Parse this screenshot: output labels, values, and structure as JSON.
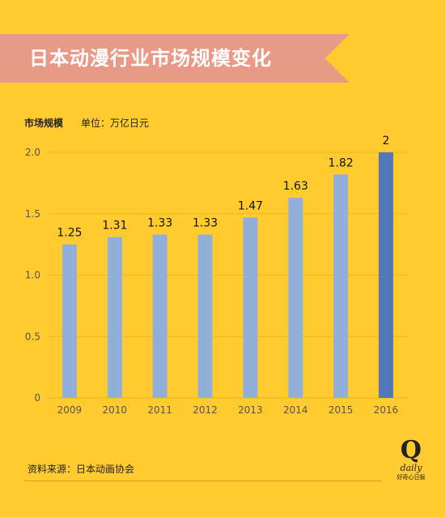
{
  "header": {
    "title": "日本动漫行业市场规模变化"
  },
  "chart_data": {
    "type": "bar",
    "title": "日本动漫行业市场规模变化",
    "ylabel": "市场规模",
    "unit": "单位：万亿日元",
    "categories": [
      "2009",
      "2010",
      "2011",
      "2012",
      "2013",
      "2014",
      "2015",
      "2016"
    ],
    "values": [
      1.25,
      1.31,
      1.33,
      1.33,
      1.47,
      1.63,
      1.82,
      2
    ],
    "data_labels": [
      "1.25",
      "1.31",
      "1.33",
      "1.33",
      "1.47",
      "1.63",
      "1.82",
      "2"
    ],
    "ylim": [
      0,
      2
    ],
    "yticks": [
      "0",
      "0.5",
      "1.0",
      "1.5",
      "2.0"
    ],
    "grid": true,
    "colors": {
      "bar": "#92AFD9",
      "highlight_bar": "#5477B8",
      "grid": "#E7B923"
    },
    "highlight_index": 7
  },
  "footer": {
    "source": "资料来源：日本动画协会",
    "logo": {
      "letter": "Q",
      "word": "daily",
      "caption": "好奇心日报"
    }
  }
}
